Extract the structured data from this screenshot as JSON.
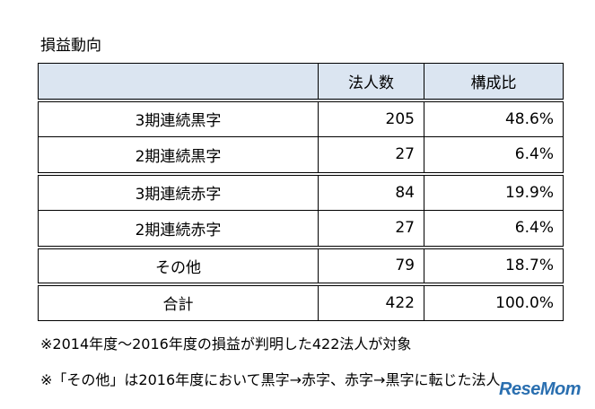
{
  "title": "損益動向",
  "table": {
    "headers": [
      "",
      "法人数",
      "構成比"
    ],
    "rows": [
      {
        "label": "3期連続黒字",
        "count": "205",
        "share": "48.6%"
      },
      {
        "label": "2期連続黒字",
        "count": "27",
        "share": "6.4%"
      },
      {
        "label": "3期連続赤字",
        "count": "84",
        "share": "19.9%"
      },
      {
        "label": "2期連続赤字",
        "count": "27",
        "share": "6.4%"
      },
      {
        "label": "その他",
        "count": "79",
        "share": "18.7%"
      },
      {
        "label": "合計",
        "count": "422",
        "share": "100.0%"
      }
    ]
  },
  "notes": [
    "※2014年度～2016年度の損益が判明した422法人が対象",
    "※「その他」は2016年度において黒字→赤字、赤字→黒字に転じた法人"
  ],
  "watermark": "ReseMom"
}
